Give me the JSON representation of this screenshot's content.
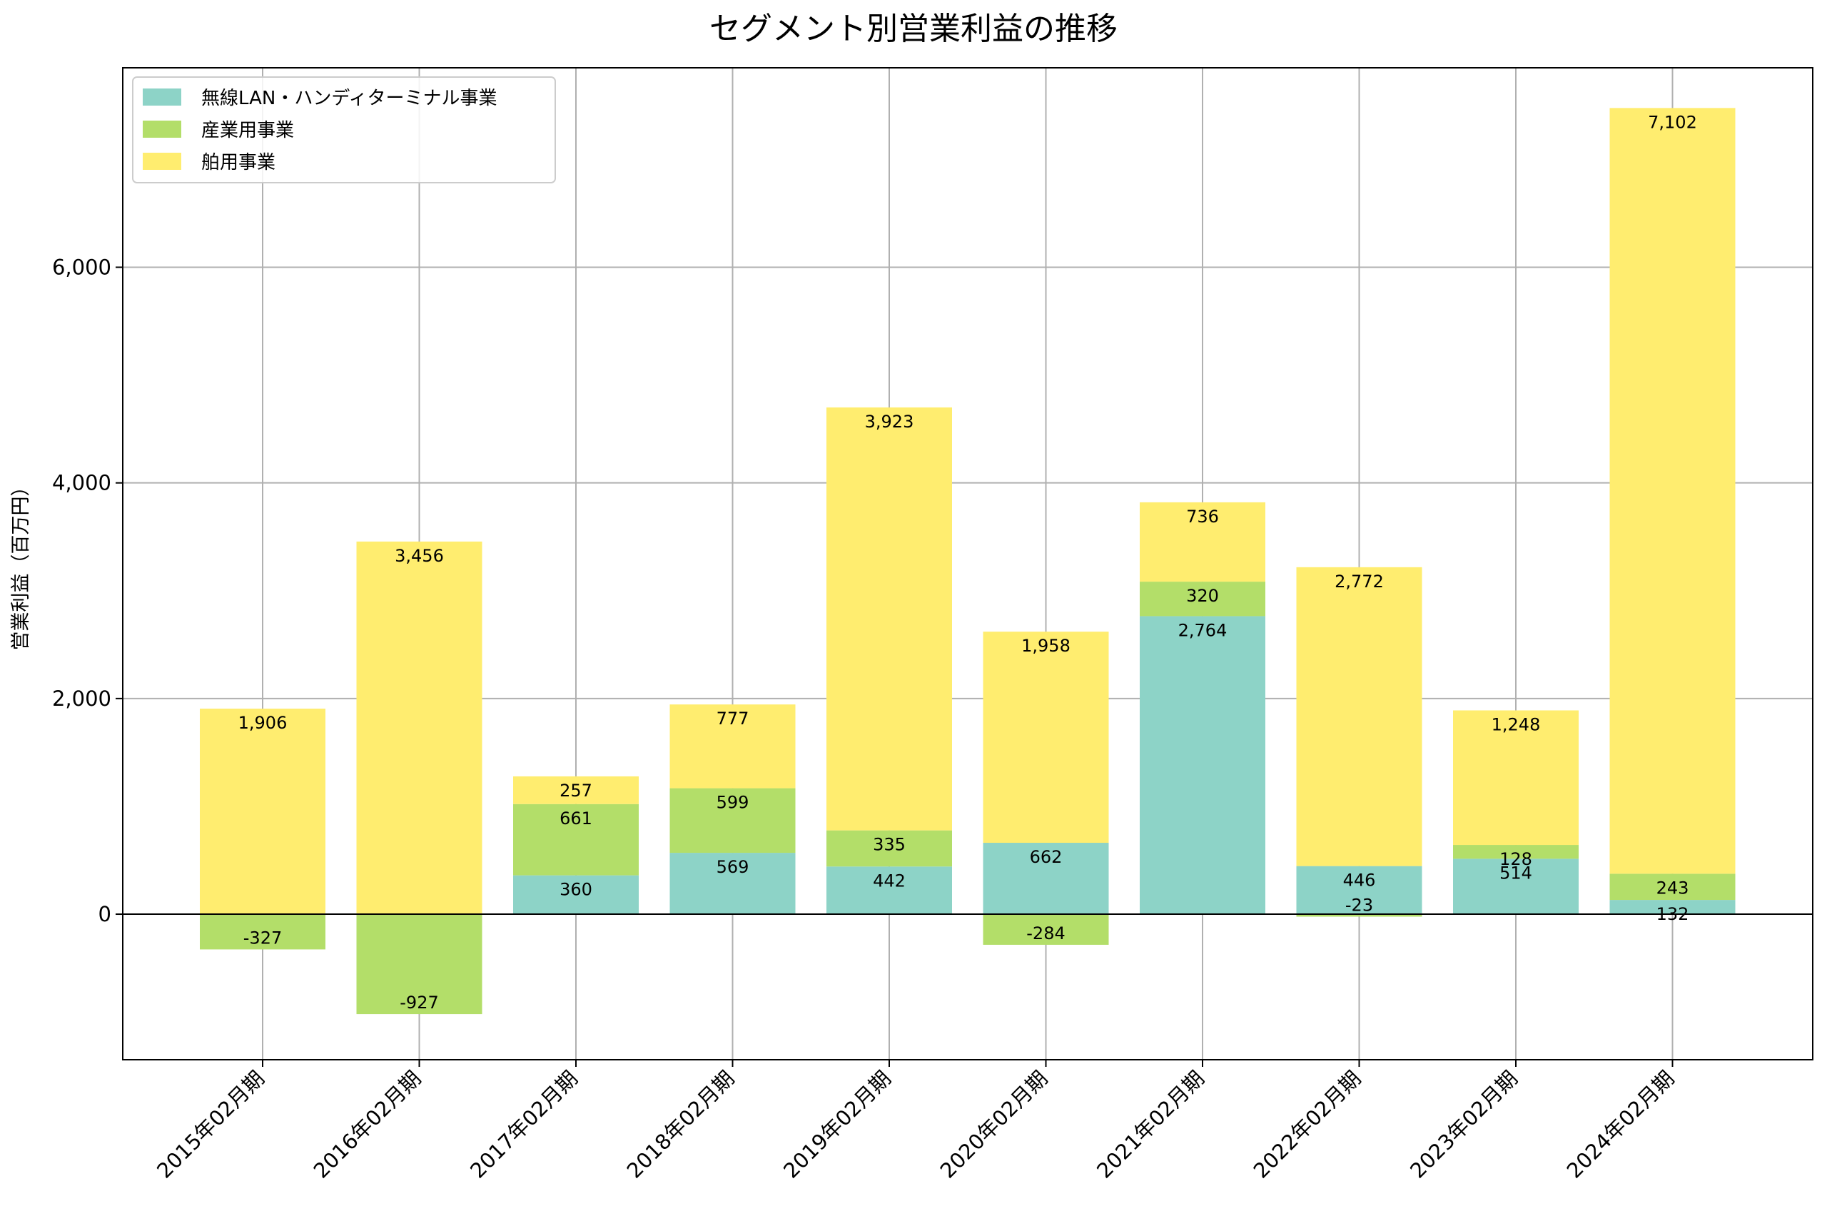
{
  "chart_data": {
    "type": "bar",
    "stacked": true,
    "title": "セグメント別営業利益の推移",
    "xlabel": "",
    "ylabel": "営業利益（百万円）",
    "categories": [
      "2015年02月期",
      "2016年02月期",
      "2017年02月期",
      "2018年02月期",
      "2019年02月期",
      "2020年02月期",
      "2021年02月期",
      "2022年02月期",
      "2023年02月期",
      "2024年02月期"
    ],
    "series": [
      {
        "name": "無線LAN・ハンディターミナル事業",
        "color": "#8dd3c7",
        "values": [
          null,
          null,
          360,
          569,
          442,
          662,
          2764,
          446,
          514,
          132
        ],
        "labels": [
          "",
          "",
          "360",
          "569",
          "442",
          "662",
          "2,764",
          "446",
          "514",
          "132"
        ]
      },
      {
        "name": "産業用事業",
        "color": "#b3de69",
        "values": [
          -327,
          -927,
          661,
          599,
          335,
          -284,
          320,
          -23,
          128,
          243
        ],
        "labels": [
          "-327",
          "-927",
          "661",
          "599",
          "335",
          "-284",
          "320",
          "-23",
          "128",
          "243"
        ]
      },
      {
        "name": "舶用事業",
        "color": "#ffed6f",
        "values": [
          1906,
          3456,
          257,
          777,
          3923,
          1958,
          736,
          2772,
          1248,
          7102
        ],
        "labels": [
          "1,906",
          "3,456",
          "257",
          "777",
          "3,923",
          "1,958",
          "736",
          "2,772",
          "1,248",
          "7,102"
        ]
      }
    ],
    "ylim": [
      -1350,
      7850
    ],
    "yticks": [
      0,
      2000,
      4000,
      6000
    ],
    "ytick_labels": [
      "0",
      "2,000",
      "4,000",
      "6,000"
    ],
    "grid": true,
    "legend_position": "top-left"
  }
}
